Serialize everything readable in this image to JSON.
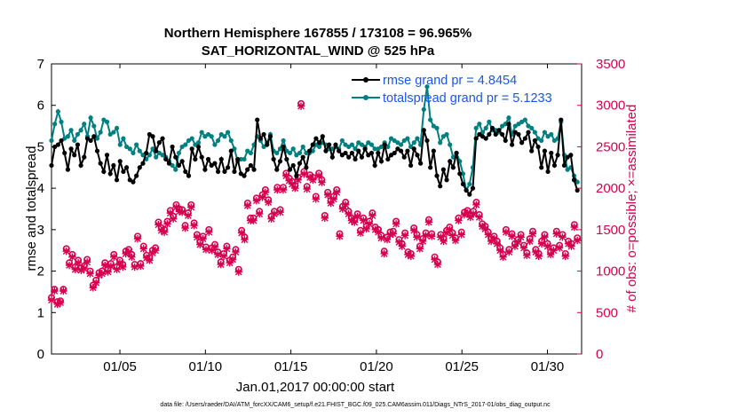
{
  "chart_data": {
    "type": "line",
    "title_line1": "Northern Hemisphere 167855 / 173108 = 96.965%",
    "title_line2": "SAT_HORIZONTAL_WIND @ 525 hPa",
    "xlabel": "Jan.01,2017 00:00:00 start",
    "ylabel": "rmse and totalspread",
    "ylabel_right": "# of obs: o=possible; ×=assimilated",
    "footnote": "data file: /Users/raeder/DAI/ATM_forcXX/CAM6_setup/f.e21.FHIST_BGC.f09_025.CAM6assim.011/Diags_NTrS_2017-01/obs_diag_output.nc",
    "x_ticks": [
      {
        "day": 5,
        "label": "01/05"
      },
      {
        "day": 10,
        "label": "01/10"
      },
      {
        "day": 15,
        "label": "01/15"
      },
      {
        "day": 20,
        "label": "01/20"
      },
      {
        "day": 25,
        "label": "01/25"
      },
      {
        "day": 30,
        "label": "01/30"
      }
    ],
    "xlim": [
      1,
      32
    ],
    "ylim": [
      0,
      7
    ],
    "ylim_right": [
      0,
      3500
    ],
    "y_ticks": [
      "0",
      "1",
      "2",
      "3",
      "4",
      "5",
      "6",
      "7"
    ],
    "y_ticks_right": [
      "0",
      "500",
      "1000",
      "1500",
      "2000",
      "2500",
      "3000",
      "3500"
    ],
    "series": [
      {
        "name": "rmse grand pr = 4.8454",
        "color": "#000000",
        "axis": "left",
        "values": [
          4.55,
          5.0,
          5.05,
          5.15,
          4.85,
          4.45,
          4.95,
          4.8,
          5.05,
          4.55,
          4.75,
          5.2,
          5.15,
          5.25,
          4.9,
          4.6,
          4.4,
          4.8,
          4.35,
          4.55,
          4.2,
          4.65,
          4.4,
          4.5,
          4.2,
          4.15,
          4.3,
          4.5,
          4.6,
          4.85,
          5.3,
          5.25,
          4.9,
          5.1,
          5.2,
          4.7,
          4.6,
          5.0,
          4.75,
          4.55,
          4.65,
          4.4,
          4.3,
          4.95,
          4.7,
          5.0,
          4.75,
          4.45,
          4.7,
          4.55,
          4.6,
          4.4,
          4.7,
          4.4,
          4.5,
          4.9,
          4.4,
          4.7,
          4.35,
          4.3,
          4.45,
          4.55,
          4.45,
          5.65,
          5.2,
          5.3,
          5.05,
          5.25,
          4.7,
          4.45,
          4.65,
          5.0,
          4.7,
          4.45,
          4.55,
          4.3,
          4.6,
          4.75,
          4.5,
          4.9,
          5.05,
          5.2,
          5.1,
          5.25,
          4.9,
          5.05,
          4.75,
          5.05,
          4.9,
          4.8,
          4.85,
          4.75,
          4.85,
          4.7,
          4.9,
          4.75,
          4.95,
          4.8,
          4.85,
          4.55,
          4.85,
          4.65,
          5.05,
          4.7,
          4.8,
          4.85,
          4.95,
          4.9,
          4.75,
          4.9,
          4.55,
          4.95,
          4.8,
          4.6,
          5.4,
          5.15,
          4.5,
          4.9,
          4.3,
          4.05,
          4.45,
          4.2,
          4.65,
          4.5,
          4.85,
          4.35,
          4.1,
          3.95,
          3.85,
          4.0,
          5.2,
          5.3,
          5.25,
          5.2,
          5.3,
          5.45,
          5.3,
          5.4,
          5.3,
          5.15,
          5.55,
          5.05,
          5.35,
          5.3,
          5.1,
          5.2,
          5.35,
          4.9,
          5.15,
          5.0,
          4.5,
          4.9,
          4.4,
          4.85,
          4.55,
          4.8,
          5.65,
          4.55,
          4.75,
          4.8,
          4.2,
          3.95
        ]
      },
      {
        "name": "totalspread grand pr = 5.1233",
        "color": "#008080",
        "axis": "left",
        "values": [
          5.15,
          5.55,
          5.85,
          5.6,
          5.2,
          5.25,
          5.4,
          5.15,
          5.3,
          5.4,
          5.55,
          5.25,
          5.7,
          5.5,
          5.2,
          5.35,
          5.65,
          5.6,
          5.3,
          5.35,
          5.45,
          5.05,
          5.2,
          5.0,
          4.95,
          4.85,
          5.05,
          4.9,
          4.8,
          4.7,
          4.8,
          4.95,
          4.75,
          4.85,
          4.8,
          4.75,
          4.65,
          4.55,
          4.45,
          4.85,
          5.0,
          5.05,
          5.15,
          5.2,
          5.05,
          5.1,
          5.35,
          5.25,
          5.3,
          5.25,
          5.05,
          5.15,
          5.3,
          5.25,
          5.35,
          5.15,
          4.95,
          4.65,
          4.7,
          4.7,
          4.9,
          4.85,
          5.05,
          5.25,
          5.15,
          5.0,
          5.1,
          5.3,
          4.9,
          4.85,
          4.95,
          5.15,
          4.9,
          4.85,
          4.95,
          4.8,
          4.85,
          5.0,
          4.85,
          4.85,
          4.9,
          5.05,
          5.0,
          5.1,
          5.05,
          4.95,
          4.95,
          5.0,
          4.95,
          5.15,
          5.05,
          5.0,
          5.05,
          4.95,
          5.1,
          5.05,
          5.0,
          5.1,
          5.05,
          4.95,
          4.95,
          5.0,
          5.1,
          5.0,
          5.2,
          5.15,
          5.1,
          5.05,
          5.15,
          5.2,
          5.0,
          5.1,
          5.2,
          5.05,
          5.9,
          6.45,
          5.65,
          5.5,
          5.45,
          5.1,
          5.25,
          5.3,
          5.05,
          4.75,
          4.85,
          4.65,
          4.35,
          3.95,
          4.1,
          4.5,
          5.45,
          5.55,
          5.35,
          5.45,
          5.6,
          5.4,
          5.4,
          5.35,
          5.5,
          5.55,
          5.7,
          5.3,
          5.5,
          5.55,
          5.6,
          5.65,
          5.5,
          5.45,
          5.35,
          5.2,
          5.15,
          5.35,
          5.25,
          5.3,
          5.15,
          5.2,
          5.6,
          4.8,
          4.45,
          4.5,
          4.3,
          4.15
        ]
      },
      {
        "name": "obs possible",
        "color": "#d6004f",
        "axis": "right",
        "marker": "circle",
        "values": [
          680,
          780,
          630,
          640,
          780,
          1270,
          1100,
          1200,
          1050,
          1130,
          1040,
          1060,
          1140,
          1000,
          830,
          890,
          980,
          1000,
          1100,
          1020,
          1090,
          1200,
          1050,
          1130,
          1080,
          1240,
          1260,
          1200,
          1080,
          1420,
          1090,
          1300,
          1190,
          1160,
          1250,
          1280,
          1590,
          1520,
          1500,
          1600,
          1730,
          1660,
          1800,
          1750,
          1740,
          1550,
          1700,
          1800,
          1580,
          1440,
          1350,
          1420,
          1290,
          1500,
          1280,
          1320,
          1230,
          1110,
          1210,
          1300,
          1130,
          1170,
          1260,
          1020,
          1490,
          1410,
          1820,
          1640,
          1640,
          1880,
          1720,
          1920,
          1980,
          1860,
          1660,
          1720,
          2010,
          1740,
          2010,
          2180,
          2120,
          2080,
          2030,
          2130,
          3020,
          2200,
          2020,
          2160,
          2130,
          1900,
          2180,
          2100,
          1670,
          1950,
          1850,
          1900,
          1980,
          1450,
          1780,
          1830,
          1720,
          1640,
          1620,
          1690,
          1490,
          1640,
          1540,
          1600,
          1700,
          1530,
          1500,
          1430,
          1240,
          1410,
          1470,
          1480,
          1600,
          1380,
          1330,
          1460,
          1230,
          1210,
          1520,
          1440,
          1300,
          1390,
          1460,
          1620,
          1450,
          1170,
          1110,
          1440,
          1390,
          1490,
          1530,
          1460,
          1400,
          1640,
          1470,
          1710,
          1730,
          1680,
          1720,
          1830,
          1680,
          1570,
          1540,
          1470,
          1390,
          1420,
          1360,
          1280,
          1200,
          1500,
          1260,
          1450,
          1330,
          1380,
          1440,
          1310,
          1220,
          1390,
          1480,
          1260,
          1210,
          1360,
          1440,
          1330,
          1230,
          1280,
          1480,
          1310,
          1440,
          1210,
          1360,
          1330,
          1560,
          1400
        ]
      },
      {
        "name": "obs assimilated",
        "color": "#d6004f",
        "axis": "right",
        "marker": "x",
        "values": [
          650,
          760,
          600,
          620,
          760,
          1240,
          1070,
          1170,
          1020,
          1100,
          1010,
          1030,
          1110,
          970,
          800,
          860,
          950,
          970,
          1070,
          990,
          1060,
          1170,
          1020,
          1100,
          1050,
          1210,
          1230,
          1170,
          1050,
          1390,
          1060,
          1270,
          1160,
          1130,
          1220,
          1250,
          1560,
          1490,
          1470,
          1570,
          1700,
          1630,
          1770,
          1720,
          1710,
          1520,
          1670,
          1770,
          1550,
          1410,
          1320,
          1390,
          1260,
          1470,
          1250,
          1290,
          1200,
          1080,
          1180,
          1270,
          1100,
          1140,
          1230,
          990,
          1460,
          1380,
          1790,
          1610,
          1610,
          1850,
          1690,
          1890,
          1950,
          1830,
          1630,
          1690,
          1980,
          1710,
          1980,
          2150,
          2090,
          2050,
          2000,
          2100,
          2990,
          2170,
          1990,
          2130,
          2100,
          1870,
          2150,
          2070,
          1640,
          1920,
          1820,
          1870,
          1950,
          1420,
          1750,
          1800,
          1690,
          1610,
          1590,
          1660,
          1460,
          1610,
          1510,
          1570,
          1670,
          1500,
          1470,
          1400,
          1210,
          1380,
          1440,
          1450,
          1570,
          1350,
          1300,
          1430,
          1200,
          1180,
          1490,
          1410,
          1270,
          1360,
          1430,
          1590,
          1420,
          1140,
          1080,
          1410,
          1360,
          1460,
          1500,
          1430,
          1370,
          1610,
          1440,
          1680,
          1700,
          1650,
          1690,
          1800,
          1650,
          1540,
          1510,
          1440,
          1360,
          1390,
          1330,
          1250,
          1170,
          1470,
          1230,
          1420,
          1300,
          1350,
          1410,
          1280,
          1190,
          1360,
          1450,
          1230,
          1180,
          1330,
          1410,
          1300,
          1200,
          1250,
          1450,
          1280,
          1410,
          1180,
          1330,
          1300,
          1530,
          1370
        ]
      }
    ],
    "legend_position": "top-right",
    "grid": false
  }
}
